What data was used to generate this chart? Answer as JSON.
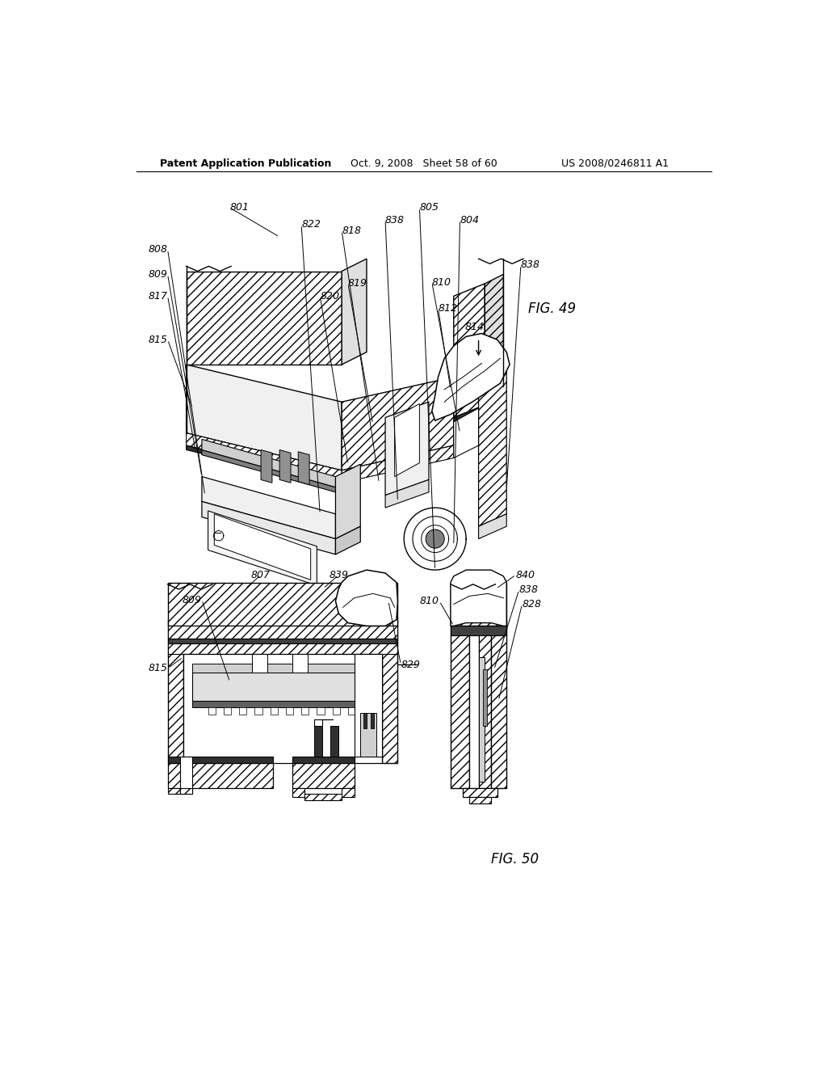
{
  "bg_color": "#ffffff",
  "header_left": "Patent Application Publication",
  "header_mid": "Oct. 9, 2008   Sheet 58 of 60",
  "header_right": "US 2008/0246811 A1",
  "fig49_label": "FIG. 49",
  "fig50_label": "FIG. 50"
}
